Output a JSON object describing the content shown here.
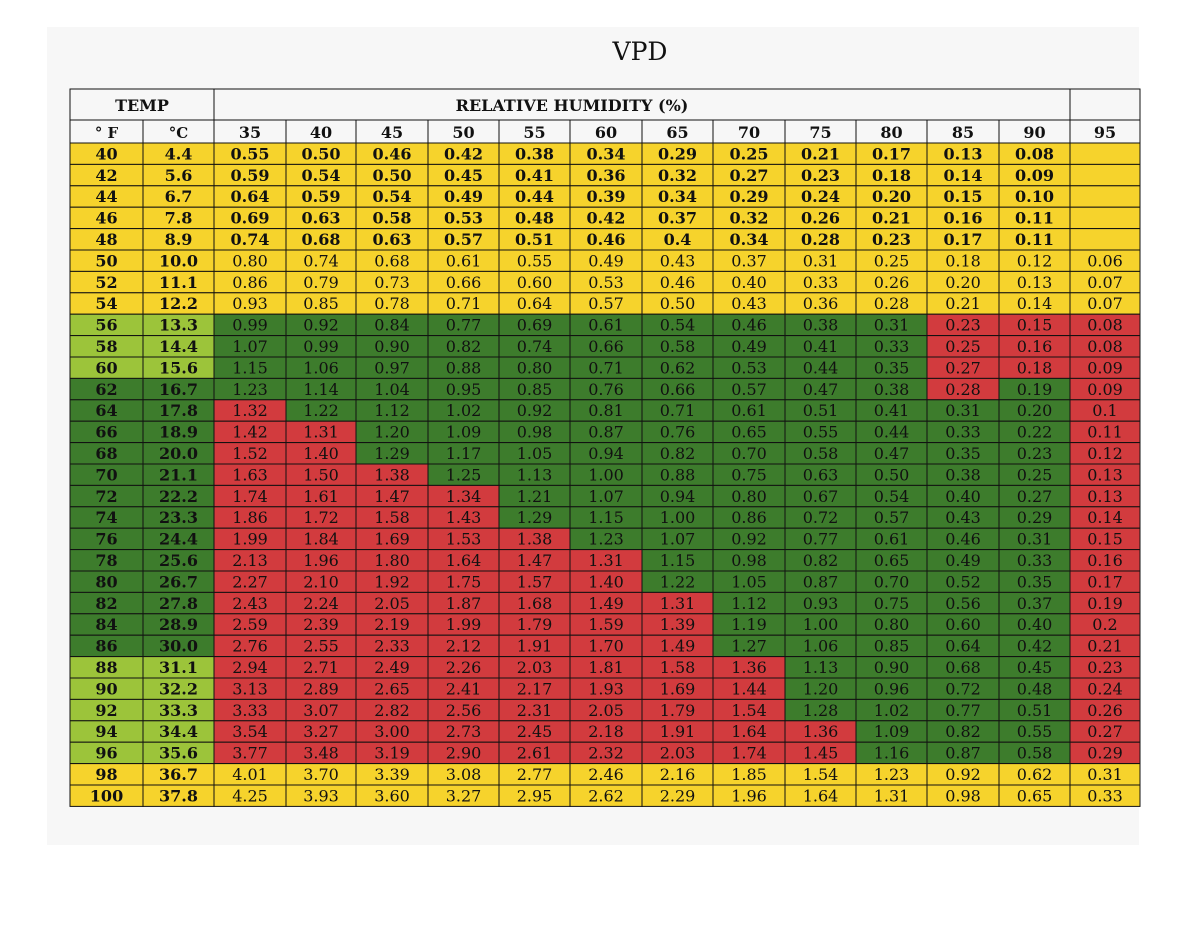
{
  "chart_data": {
    "type": "heatmap",
    "title": "VPD",
    "row_header": {
      "group": "TEMP",
      "fahrenheit": "° F",
      "celsius": "°C"
    },
    "column_group_label": "RELATIVE HUMIDITY (%)",
    "columns": [
      "35",
      "40",
      "45",
      "50",
      "55",
      "60",
      "65",
      "70",
      "75",
      "80",
      "85",
      "90",
      "95"
    ],
    "rows": [
      {
        "f": "40",
        "c": "4.4",
        "values": [
          "0.55",
          "0.50",
          "0.46",
          "0.42",
          "0.38",
          "0.34",
          "0.29",
          "0.25",
          "0.21",
          "0.17",
          "0.13",
          "0.08",
          ""
        ]
      },
      {
        "f": "42",
        "c": "5.6",
        "values": [
          "0.59",
          "0.54",
          "0.50",
          "0.45",
          "0.41",
          "0.36",
          "0.32",
          "0.27",
          "0.23",
          "0.18",
          "0.14",
          "0.09",
          ""
        ]
      },
      {
        "f": "44",
        "c": "6.7",
        "values": [
          "0.64",
          "0.59",
          "0.54",
          "0.49",
          "0.44",
          "0.39",
          "0.34",
          "0.29",
          "0.24",
          "0.20",
          "0.15",
          "0.10",
          ""
        ]
      },
      {
        "f": "46",
        "c": "7.8",
        "values": [
          "0.69",
          "0.63",
          "0.58",
          "0.53",
          "0.48",
          "0.42",
          "0.37",
          "0.32",
          "0.26",
          "0.21",
          "0.16",
          "0.11",
          ""
        ]
      },
      {
        "f": "48",
        "c": "8.9",
        "values": [
          "0.74",
          "0.68",
          "0.63",
          "0.57",
          "0.51",
          "0.46",
          "0.4",
          "0.34",
          "0.28",
          "0.23",
          "0.17",
          "0.11",
          ""
        ]
      },
      {
        "f": "50",
        "c": "10.0",
        "values": [
          "0.80",
          "0.74",
          "0.68",
          "0.61",
          "0.55",
          "0.49",
          "0.43",
          "0.37",
          "0.31",
          "0.25",
          "0.18",
          "0.12",
          "0.06"
        ]
      },
      {
        "f": "52",
        "c": "11.1",
        "values": [
          "0.86",
          "0.79",
          "0.73",
          "0.66",
          "0.60",
          "0.53",
          "0.46",
          "0.40",
          "0.33",
          "0.26",
          "0.20",
          "0.13",
          "0.07"
        ]
      },
      {
        "f": "54",
        "c": "12.2",
        "values": [
          "0.93",
          "0.85",
          "0.78",
          "0.71",
          "0.64",
          "0.57",
          "0.50",
          "0.43",
          "0.36",
          "0.28",
          "0.21",
          "0.14",
          "0.07"
        ]
      },
      {
        "f": "56",
        "c": "13.3",
        "values": [
          "0.99",
          "0.92",
          "0.84",
          "0.77",
          "0.69",
          "0.61",
          "0.54",
          "0.46",
          "0.38",
          "0.31",
          "0.23",
          "0.15",
          "0.08"
        ]
      },
      {
        "f": "58",
        "c": "14.4",
        "values": [
          "1.07",
          "0.99",
          "0.90",
          "0.82",
          "0.74",
          "0.66",
          "0.58",
          "0.49",
          "0.41",
          "0.33",
          "0.25",
          "0.16",
          "0.08"
        ]
      },
      {
        "f": "60",
        "c": "15.6",
        "values": [
          "1.15",
          "1.06",
          "0.97",
          "0.88",
          "0.80",
          "0.71",
          "0.62",
          "0.53",
          "0.44",
          "0.35",
          "0.27",
          "0.18",
          "0.09"
        ]
      },
      {
        "f": "62",
        "c": "16.7",
        "values": [
          "1.23",
          "1.14",
          "1.04",
          "0.95",
          "0.85",
          "0.76",
          "0.66",
          "0.57",
          "0.47",
          "0.38",
          "0.28",
          "0.19",
          "0.09"
        ]
      },
      {
        "f": "64",
        "c": "17.8",
        "values": [
          "1.32",
          "1.22",
          "1.12",
          "1.02",
          "0.92",
          "0.81",
          "0.71",
          "0.61",
          "0.51",
          "0.41",
          "0.31",
          "0.20",
          "0.1"
        ]
      },
      {
        "f": "66",
        "c": "18.9",
        "values": [
          "1.42",
          "1.31",
          "1.20",
          "1.09",
          "0.98",
          "0.87",
          "0.76",
          "0.65",
          "0.55",
          "0.44",
          "0.33",
          "0.22",
          "0.11"
        ]
      },
      {
        "f": "68",
        "c": "20.0",
        "values": [
          "1.52",
          "1.40",
          "1.29",
          "1.17",
          "1.05",
          "0.94",
          "0.82",
          "0.70",
          "0.58",
          "0.47",
          "0.35",
          "0.23",
          "0.12"
        ]
      },
      {
        "f": "70",
        "c": "21.1",
        "values": [
          "1.63",
          "1.50",
          "1.38",
          "1.25",
          "1.13",
          "1.00",
          "0.88",
          "0.75",
          "0.63",
          "0.50",
          "0.38",
          "0.25",
          "0.13"
        ]
      },
      {
        "f": "72",
        "c": "22.2",
        "values": [
          "1.74",
          "1.61",
          "1.47",
          "1.34",
          "1.21",
          "1.07",
          "0.94",
          "0.80",
          "0.67",
          "0.54",
          "0.40",
          "0.27",
          "0.13"
        ]
      },
      {
        "f": "74",
        "c": "23.3",
        "values": [
          "1.86",
          "1.72",
          "1.58",
          "1.43",
          "1.29",
          "1.15",
          "1.00",
          "0.86",
          "0.72",
          "0.57",
          "0.43",
          "0.29",
          "0.14"
        ]
      },
      {
        "f": "76",
        "c": "24.4",
        "values": [
          "1.99",
          "1.84",
          "1.69",
          "1.53",
          "1.38",
          "1.23",
          "1.07",
          "0.92",
          "0.77",
          "0.61",
          "0.46",
          "0.31",
          "0.15"
        ]
      },
      {
        "f": "78",
        "c": "25.6",
        "values": [
          "2.13",
          "1.96",
          "1.80",
          "1.64",
          "1.47",
          "1.31",
          "1.15",
          "0.98",
          "0.82",
          "0.65",
          "0.49",
          "0.33",
          "0.16"
        ]
      },
      {
        "f": "80",
        "c": "26.7",
        "values": [
          "2.27",
          "2.10",
          "1.92",
          "1.75",
          "1.57",
          "1.40",
          "1.22",
          "1.05",
          "0.87",
          "0.70",
          "0.52",
          "0.35",
          "0.17"
        ]
      },
      {
        "f": "82",
        "c": "27.8",
        "values": [
          "2.43",
          "2.24",
          "2.05",
          "1.87",
          "1.68",
          "1.49",
          "1.31",
          "1.12",
          "0.93",
          "0.75",
          "0.56",
          "0.37",
          "0.19"
        ]
      },
      {
        "f": "84",
        "c": "28.9",
        "values": [
          "2.59",
          "2.39",
          "2.19",
          "1.99",
          "1.79",
          "1.59",
          "1.39",
          "1.19",
          "1.00",
          "0.80",
          "0.60",
          "0.40",
          "0.2"
        ]
      },
      {
        "f": "86",
        "c": "30.0",
        "values": [
          "2.76",
          "2.55",
          "2.33",
          "2.12",
          "1.91",
          "1.70",
          "1.49",
          "1.27",
          "1.06",
          "0.85",
          "0.64",
          "0.42",
          "0.21"
        ]
      },
      {
        "f": "88",
        "c": "31.1",
        "values": [
          "2.94",
          "2.71",
          "2.49",
          "2.26",
          "2.03",
          "1.81",
          "1.58",
          "1.36",
          "1.13",
          "0.90",
          "0.68",
          "0.45",
          "0.23"
        ]
      },
      {
        "f": "90",
        "c": "32.2",
        "values": [
          "3.13",
          "2.89",
          "2.65",
          "2.41",
          "2.17",
          "1.93",
          "1.69",
          "1.44",
          "1.20",
          "0.96",
          "0.72",
          "0.48",
          "0.24"
        ]
      },
      {
        "f": "92",
        "c": "33.3",
        "values": [
          "3.33",
          "3.07",
          "2.82",
          "2.56",
          "2.31",
          "2.05",
          "1.79",
          "1.54",
          "1.28",
          "1.02",
          "0.77",
          "0.51",
          "0.26"
        ]
      },
      {
        "f": "94",
        "c": "34.4",
        "values": [
          "3.54",
          "3.27",
          "3.00",
          "2.73",
          "2.45",
          "2.18",
          "1.91",
          "1.64",
          "1.36",
          "1.09",
          "0.82",
          "0.55",
          "0.27"
        ]
      },
      {
        "f": "96",
        "c": "35.6",
        "values": [
          "3.77",
          "3.48",
          "3.19",
          "2.90",
          "2.61",
          "2.32",
          "2.03",
          "1.74",
          "1.45",
          "1.16",
          "0.87",
          "0.58",
          "0.29"
        ]
      },
      {
        "f": "98",
        "c": "36.7",
        "values": [
          "4.01",
          "3.70",
          "3.39",
          "3.08",
          "2.77",
          "2.46",
          "2.16",
          "1.85",
          "1.54",
          "1.23",
          "0.92",
          "0.62",
          "0.31"
        ]
      },
      {
        "f": "100",
        "c": "37.8",
        "values": [
          "4.25",
          "3.93",
          "3.60",
          "3.27",
          "2.95",
          "2.62",
          "2.29",
          "1.96",
          "1.64",
          "1.31",
          "0.98",
          "0.65",
          "0.33"
        ]
      }
    ],
    "zones": {
      "yellow": "#f6d32c",
      "light_green": "#9cc43a",
      "dark_green": "#3d7c2c",
      "red": "#d23b3e"
    },
    "header_row_ids": [
      "40",
      "42",
      "44",
      "46",
      "48"
    ],
    "light_green_temp_rows": [
      "56",
      "58",
      "60",
      "88",
      "90",
      "92",
      "94",
      "96"
    ],
    "dark_green_temp_rows": [
      "62",
      "64",
      "66",
      "68",
      "70",
      "72",
      "74",
      "76",
      "78",
      "80",
      "82",
      "84",
      "86"
    ],
    "red_from_column_by_row": {
      "56": [
        "85",
        "90",
        "95"
      ],
      "58": [
        "85",
        "90",
        "95"
      ],
      "60": [
        "85",
        "90",
        "95"
      ],
      "62": [
        "85",
        "95"
      ]
    },
    "red_lower_bound_column_by_row": {
      "64": "35",
      "66": "40",
      "68": "40",
      "70": "45",
      "72": "50",
      "74": "50",
      "76": "55",
      "78": "60",
      "80": "60",
      "82": "65",
      "84": "65",
      "86": "65",
      "88": "70",
      "90": "70",
      "92": "70",
      "94": "75",
      "96": "75"
    }
  }
}
